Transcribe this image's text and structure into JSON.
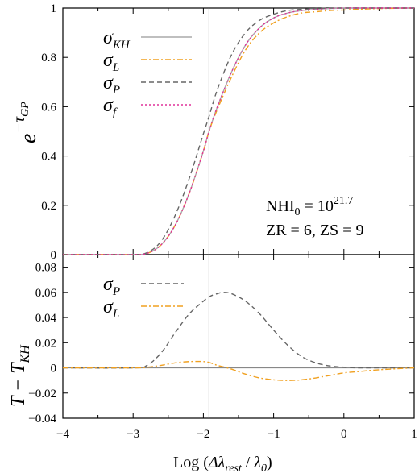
{
  "chart_data": [
    {
      "type": "line",
      "panel": "top",
      "ylabel_base": "e",
      "ylabel_exp_prefix": "−τ",
      "ylabel_exp_sub": "GP",
      "xlim": [
        -4,
        1
      ],
      "ylim": [
        0,
        1
      ],
      "xticks": [
        -4,
        -3,
        -2,
        -1,
        0,
        1
      ],
      "yticks": [
        0,
        0.2,
        0.4,
        0.6,
        0.8,
        1
      ],
      "ytick_labels": [
        "0",
        "0.2",
        "0.4",
        "0.6",
        "0.8",
        "1"
      ],
      "vline_x": -1.92,
      "legend_position": "top-left",
      "annotation": {
        "line1_prefix": "NHI",
        "line1_sub": "0",
        "line1_mid": " = 10",
        "line1_sup": "21.7",
        "line2": "ZR = 6, ZS = 9"
      },
      "series": [
        {
          "name": "σ",
          "name_sub": "KH",
          "color": "#aaaaaa",
          "dash": "solid",
          "x": [
            -4,
            -3.2,
            -3.0,
            -2.8,
            -2.6,
            -2.4,
            -2.2,
            -2.0,
            -1.92,
            -1.8,
            -1.6,
            -1.4,
            -1.2,
            -1.0,
            -0.8,
            -0.6,
            -0.4,
            -0.2,
            0,
            0.2,
            0.5,
            1.0
          ],
          "y": [
            0,
            0,
            0,
            0.005,
            0.04,
            0.12,
            0.25,
            0.42,
            0.5,
            0.6,
            0.74,
            0.85,
            0.92,
            0.96,
            0.98,
            0.99,
            0.995,
            0.998,
            1.0,
            1.0,
            1.0,
            1.0
          ]
        },
        {
          "name": "σ",
          "name_sub": "L",
          "color": "#f0a020",
          "dash": "dashdot",
          "x": [
            -4,
            -3.2,
            -3.0,
            -2.8,
            -2.6,
            -2.4,
            -2.2,
            -2.0,
            -1.92,
            -1.8,
            -1.6,
            -1.4,
            -1.2,
            -1.0,
            -0.8,
            -0.6,
            -0.4,
            -0.2,
            0,
            0.2,
            0.5,
            1.0
          ],
          "y": [
            0,
            0,
            0,
            0.005,
            0.04,
            0.12,
            0.25,
            0.42,
            0.5,
            0.59,
            0.72,
            0.83,
            0.9,
            0.94,
            0.965,
            0.98,
            0.985,
            0.99,
            0.992,
            0.995,
            0.998,
            1.0
          ]
        },
        {
          "name": "σ",
          "name_sub": "P",
          "color": "#666666",
          "dash": "dashed",
          "x": [
            -4,
            -3.2,
            -3.0,
            -2.8,
            -2.6,
            -2.4,
            -2.2,
            -2.0,
            -1.92,
            -1.8,
            -1.6,
            -1.4,
            -1.2,
            -1.0,
            -0.8,
            -0.6,
            -0.4,
            -0.2,
            0,
            0.2,
            0.5,
            1.0
          ],
          "y": [
            0,
            0,
            0,
            0.008,
            0.055,
            0.16,
            0.31,
            0.49,
            0.56,
            0.67,
            0.81,
            0.9,
            0.95,
            0.975,
            0.99,
            0.995,
            0.998,
            1.0,
            1.0,
            1.0,
            1.0,
            1.0
          ]
        },
        {
          "name": "σ",
          "name_sub": "f",
          "color": "#e0309a",
          "dash": "dotted",
          "x": [
            -4,
            -3.2,
            -3.0,
            -2.8,
            -2.6,
            -2.4,
            -2.2,
            -2.0,
            -1.92,
            -1.8,
            -1.6,
            -1.4,
            -1.2,
            -1.0,
            -0.8,
            -0.6,
            -0.4,
            -0.2,
            0,
            0.2,
            0.5,
            1.0
          ],
          "y": [
            0,
            0,
            0,
            0.005,
            0.04,
            0.12,
            0.25,
            0.42,
            0.5,
            0.6,
            0.74,
            0.85,
            0.92,
            0.96,
            0.98,
            0.99,
            0.995,
            0.998,
            1.0,
            1.0,
            1.0,
            1.0
          ]
        }
      ]
    },
    {
      "type": "line",
      "panel": "bottom",
      "xlabel_prefix": "Log (",
      "xlabel_delta": "Δλ",
      "xlabel_delta_sub": "rest",
      "xlabel_mid": " / ",
      "xlabel_lambda": "λ",
      "xlabel_lambda_sub": "0",
      "xlabel_suffix": ")",
      "ylabel_prefix": "T − T",
      "ylabel_sub": "KH",
      "xlim": [
        -4,
        1
      ],
      "ylim": [
        -0.04,
        0.09
      ],
      "xticks": [
        -4,
        -3,
        -2,
        -1,
        0,
        1
      ],
      "xtick_labels": [
        "−4",
        "−3",
        "−2",
        "−1",
        "0",
        "1"
      ],
      "yticks": [
        -0.04,
        -0.02,
        0,
        0.02,
        0.04,
        0.06,
        0.08
      ],
      "ytick_labels": [
        "−0.04",
        "−0.02",
        "0",
        "0.02",
        "0.04",
        "0.06",
        "0.08"
      ],
      "vline_x": -1.92,
      "hline_y": 0,
      "legend_position": "top-left",
      "series": [
        {
          "name": "σ",
          "name_sub": "P",
          "color": "#666666",
          "dash": "dashed",
          "x": [
            -4,
            -3.0,
            -2.8,
            -2.6,
            -2.4,
            -2.2,
            -2.0,
            -1.9,
            -1.8,
            -1.72,
            -1.6,
            -1.4,
            -1.2,
            -1.0,
            -0.8,
            -0.6,
            -0.4,
            -0.2,
            0,
            0.2,
            0.5,
            1.0
          ],
          "y": [
            0,
            0,
            0.002,
            0.012,
            0.028,
            0.043,
            0.053,
            0.057,
            0.059,
            0.06,
            0.059,
            0.053,
            0.043,
            0.03,
            0.018,
            0.009,
            0.004,
            0.0015,
            0.0005,
            0,
            0,
            0
          ]
        },
        {
          "name": "σ",
          "name_sub": "L",
          "color": "#f0a020",
          "dash": "dashdot",
          "x": [
            -4,
            -3.0,
            -2.8,
            -2.6,
            -2.4,
            -2.2,
            -2.0,
            -1.9,
            -1.8,
            -1.6,
            -1.4,
            -1.2,
            -1.0,
            -0.8,
            -0.6,
            -0.4,
            -0.2,
            0,
            0.2,
            0.5,
            1.0
          ],
          "y": [
            0,
            0,
            0.0005,
            0.002,
            0.004,
            0.005,
            0.005,
            0.004,
            0.002,
            -0.001,
            -0.005,
            -0.008,
            -0.0095,
            -0.01,
            -0.0095,
            -0.008,
            -0.006,
            -0.004,
            -0.003,
            -0.0015,
            0
          ]
        }
      ]
    }
  ]
}
